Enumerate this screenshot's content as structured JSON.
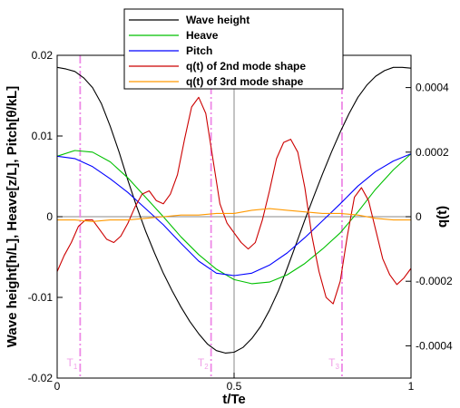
{
  "chart_data": {
    "type": "line",
    "xlabel": "t/Te",
    "ylabel_left": "Wave height[h/L], Heave[z/L], Pitch[θ/kL]",
    "ylabel_right": "q(t)",
    "xlim": [
      0,
      1
    ],
    "ylim_left": [
      -0.02,
      0.02
    ],
    "ylim_right": [
      -0.0005,
      0.0005
    ],
    "grid": "zero lines",
    "legend_position": "top-center",
    "x_ticks": [
      {
        "value": 0,
        "label": "0"
      },
      {
        "value": 0.5,
        "label": "0.5"
      },
      {
        "value": 1,
        "label": "1"
      }
    ],
    "y_left_ticks": [
      {
        "value": -0.02,
        "label": "-0.02"
      },
      {
        "value": -0.01,
        "label": "-0.01"
      },
      {
        "value": 0,
        "label": "0"
      },
      {
        "value": 0.01,
        "label": "0.01"
      },
      {
        "value": 0.02,
        "label": "0.02"
      }
    ],
    "y_right_ticks": [
      {
        "value": -0.0004,
        "label": "-0.0004"
      },
      {
        "value": -0.0002,
        "label": "-0.0002"
      },
      {
        "value": 0,
        "label": "0"
      },
      {
        "value": 0.0002,
        "label": "0.0002"
      },
      {
        "value": 0.0004,
        "label": "0.0004"
      }
    ],
    "vertical_markers": [
      {
        "x": 0.065,
        "label": "T1",
        "label_main": "T",
        "label_sub": "1"
      },
      {
        "x": 0.435,
        "label": "T2",
        "label_main": "T",
        "label_sub": "2"
      },
      {
        "x": 0.805,
        "label": "T3",
        "label_main": "T",
        "label_sub": "3"
      }
    ],
    "series": [
      {
        "name": "Wave height",
        "axis": "left",
        "color": "#000000",
        "x": [
          0,
          0.025,
          0.05,
          0.075,
          0.1,
          0.125,
          0.15,
          0.175,
          0.2,
          0.225,
          0.25,
          0.275,
          0.3,
          0.325,
          0.35,
          0.375,
          0.4,
          0.425,
          0.45,
          0.475,
          0.5,
          0.525,
          0.55,
          0.575,
          0.6,
          0.625,
          0.65,
          0.675,
          0.7,
          0.725,
          0.75,
          0.775,
          0.8,
          0.825,
          0.85,
          0.875,
          0.9,
          0.925,
          0.95,
          0.975,
          1
        ],
        "y": [
          0.0185,
          0.0183,
          0.018,
          0.0172,
          0.016,
          0.014,
          0.0112,
          0.008,
          0.0045,
          0.0012,
          -0.0018,
          -0.0045,
          -0.007,
          -0.0092,
          -0.0112,
          -0.013,
          -0.0145,
          -0.0158,
          -0.0166,
          -0.0169,
          -0.0168,
          -0.0162,
          -0.0151,
          -0.0136,
          -0.0116,
          -0.0092,
          -0.0064,
          -0.0034,
          -0.0004,
          0.0025,
          0.0053,
          0.008,
          0.0105,
          0.0128,
          0.0148,
          0.0163,
          0.0174,
          0.0181,
          0.0185,
          0.0185,
          0.0184
        ]
      },
      {
        "name": "Heave",
        "axis": "left",
        "color": "#00c000",
        "x": [
          0,
          0.05,
          0.1,
          0.15,
          0.2,
          0.25,
          0.3,
          0.35,
          0.4,
          0.45,
          0.5,
          0.55,
          0.6,
          0.65,
          0.7,
          0.75,
          0.8,
          0.85,
          0.9,
          0.95,
          1
        ],
        "y": [
          0.0075,
          0.0082,
          0.008,
          0.0068,
          0.0048,
          0.0024,
          0,
          -0.0025,
          -0.0047,
          -0.0065,
          -0.0078,
          -0.0083,
          -0.0081,
          -0.0072,
          -0.0058,
          -0.004,
          -0.002,
          0.0006,
          0.0034,
          0.0058,
          0.0078
        ]
      },
      {
        "name": "Pitch",
        "axis": "left",
        "color": "#0000ff",
        "x": [
          0,
          0.05,
          0.1,
          0.15,
          0.2,
          0.25,
          0.3,
          0.35,
          0.4,
          0.45,
          0.5,
          0.55,
          0.6,
          0.65,
          0.7,
          0.75,
          0.8,
          0.85,
          0.9,
          0.95,
          1
        ],
        "y": [
          0.0075,
          0.0072,
          0.0062,
          0.0047,
          0.003,
          0.001,
          -0.001,
          -0.0033,
          -0.0055,
          -0.007,
          -0.0073,
          -0.007,
          -0.006,
          -0.0045,
          -0.0026,
          -0.0005,
          0.0016,
          0.0038,
          0.0056,
          0.0069,
          0.0078
        ]
      },
      {
        "name": "q(t) of 2nd mode shape",
        "axis": "right",
        "color": "#cc0000",
        "x": [
          0,
          0.02,
          0.04,
          0.06,
          0.08,
          0.1,
          0.12,
          0.14,
          0.16,
          0.18,
          0.2,
          0.22,
          0.24,
          0.26,
          0.28,
          0.3,
          0.32,
          0.34,
          0.36,
          0.38,
          0.4,
          0.42,
          0.44,
          0.46,
          0.48,
          0.5,
          0.52,
          0.54,
          0.56,
          0.58,
          0.6,
          0.62,
          0.64,
          0.66,
          0.68,
          0.7,
          0.72,
          0.74,
          0.76,
          0.78,
          0.8,
          0.82,
          0.84,
          0.86,
          0.88,
          0.9,
          0.92,
          0.94,
          0.96,
          0.98,
          1
        ],
        "y": [
          -0.00017,
          -0.00012,
          -8e-05,
          -3e-05,
          -1e-05,
          -1e-05,
          -4e-05,
          -7e-05,
          -8e-05,
          -6e-05,
          -2e-05,
          3e-05,
          7e-05,
          8e-05,
          5e-05,
          4e-05,
          7e-05,
          0.00013,
          0.00024,
          0.00034,
          0.00037,
          0.00032,
          0.00018,
          4e-05,
          -2e-05,
          -5e-05,
          -8e-05,
          -0.0001,
          -8e-05,
          -1e-05,
          8e-05,
          0.00018,
          0.00023,
          0.00024,
          0.0002,
          9e-05,
          -6e-05,
          -0.00017,
          -0.00025,
          -0.00027,
          -0.0002,
          -6e-05,
          6e-05,
          9e-05,
          5e-05,
          -4e-05,
          -0.00013,
          -0.00018,
          -0.00021,
          -0.00019,
          -0.00016
        ]
      },
      {
        "name": "q(t) of 3rd mode shape",
        "axis": "right",
        "color": "#ff9900",
        "x": [
          0,
          0.05,
          0.1,
          0.15,
          0.2,
          0.25,
          0.3,
          0.35,
          0.4,
          0.45,
          0.5,
          0.55,
          0.6,
          0.65,
          0.7,
          0.75,
          0.8,
          0.85,
          0.9,
          0.95,
          1
        ],
        "y": [
          -1e-05,
          -1e-05,
          -1.5e-05,
          -1e-05,
          -1e-05,
          -5e-06,
          0,
          5e-06,
          5e-06,
          1e-05,
          1e-05,
          2e-05,
          2.5e-05,
          2e-05,
          1.5e-05,
          1e-05,
          1e-05,
          5e-06,
          -5e-06,
          -1e-05,
          -1e-05
        ]
      }
    ]
  }
}
